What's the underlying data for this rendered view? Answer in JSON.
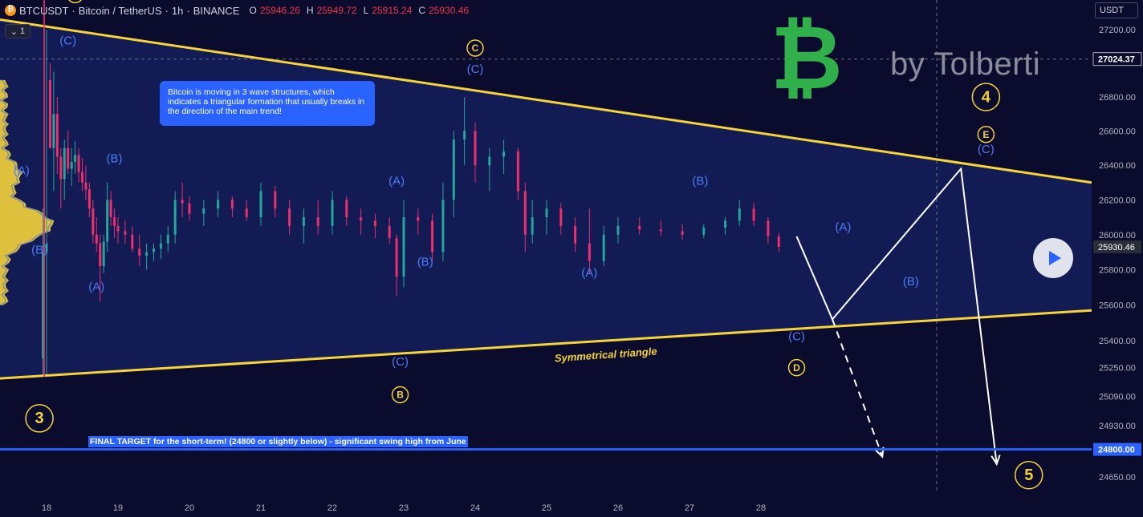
{
  "header": {
    "symbol": "BTCUSDT",
    "sep1": "·",
    "name": "Bitcoin / TetherUS",
    "sep2": "·",
    "interval": "1h",
    "sep3": "·",
    "exchange": "BINANCE",
    "open_key": "O",
    "open": "25946.26",
    "high_key": "H",
    "high": "25949.72",
    "low_key": "L",
    "low": "25915.24",
    "close_key": "C",
    "close": "25930.46"
  },
  "toolbar": {
    "collapse_chevron": "⌄",
    "collapse_count": "1",
    "currency": "USDT"
  },
  "watermark": {
    "text": "by Tolberti",
    "logo_glyph": "₿"
  },
  "colors": {
    "background": "#0b0b2e",
    "triangle_line": "#f5d33a",
    "triangle_fill": "#131c55",
    "candle_up": "#26a69a",
    "candle_down": "#ef2e6b",
    "wave_blue": "#4a7cf7",
    "wave_yellow": "#f5d33a",
    "target_line": "#2962ff",
    "logo_green": "#2fb04a"
  },
  "chart_data": {
    "type": "candlestick",
    "xlabel": "",
    "ylabel": "",
    "x_ticks": [
      "18",
      "19",
      "20",
      "21",
      "22",
      "23",
      "24",
      "25",
      "26",
      "27",
      "28"
    ],
    "y_ticks": [
      "27200.00",
      "26800.00",
      "26600.00",
      "26400.00",
      "26200.00",
      "26000.00",
      "25800.00",
      "25600.00",
      "25400.00",
      "25250.00",
      "25090.00",
      "24930.00",
      "24650.00"
    ],
    "y_scale": "log",
    "ylim": [
      24560,
      27280
    ],
    "price_labels": [
      {
        "value": 27024.37,
        "text": "27024.37",
        "style": "dark"
      },
      {
        "value": 25930.46,
        "text": "25930.46",
        "style": "grey"
      },
      {
        "value": 24800.0,
        "text": "24800.00",
        "style": "blue"
      }
    ],
    "series": [
      {
        "name": "BTCUSDT 1h",
        "ohlc_approx": [
          [
            17.95,
            25300,
            26150,
            25200,
            25900
          ],
          [
            18.0,
            25900,
            27200,
            25200,
            25950
          ],
          [
            18.05,
            26900,
            27000,
            26500,
            26500
          ],
          [
            18.1,
            26500,
            26950,
            26250,
            26700
          ],
          [
            18.15,
            26700,
            26800,
            26350,
            26450
          ],
          [
            18.2,
            26450,
            26500,
            26150,
            26320
          ],
          [
            18.25,
            26320,
            26550,
            26200,
            26500
          ],
          [
            18.3,
            26500,
            26600,
            26350,
            26380
          ],
          [
            18.35,
            26380,
            26500,
            26280,
            26420
          ],
          [
            18.4,
            26420,
            26540,
            26350,
            26460
          ],
          [
            18.45,
            26460,
            26500,
            26300,
            26360
          ],
          [
            18.5,
            26360,
            26440,
            26250,
            26300
          ],
          [
            18.55,
            26300,
            26400,
            26200,
            26260
          ],
          [
            18.6,
            26260,
            26300,
            26100,
            26150
          ],
          [
            18.65,
            26150,
            26200,
            25950,
            26000
          ],
          [
            18.7,
            26000,
            26100,
            25900,
            25950
          ],
          [
            18.75,
            25950,
            26000,
            25620,
            25820
          ],
          [
            18.8,
            25820,
            26000,
            25780,
            25960
          ],
          [
            18.85,
            25960,
            26300,
            25900,
            26200
          ],
          [
            18.9,
            26200,
            26250,
            26050,
            26100
          ],
          [
            18.95,
            26100,
            26150,
            25980,
            26050
          ],
          [
            19.0,
            26050,
            26100,
            25950,
            26020
          ],
          [
            19.1,
            26020,
            26080,
            25950,
            26000
          ],
          [
            19.2,
            26000,
            26050,
            25900,
            25920
          ],
          [
            19.3,
            25920,
            26000,
            25820,
            25880
          ],
          [
            19.4,
            25880,
            25950,
            25800,
            25900
          ],
          [
            19.5,
            25900,
            25950,
            25850,
            25920
          ],
          [
            19.6,
            25920,
            26000,
            25860,
            25950
          ],
          [
            19.7,
            25950,
            26050,
            25900,
            26000
          ],
          [
            19.8,
            26000,
            26250,
            25950,
            26200
          ],
          [
            19.9,
            26200,
            26300,
            26100,
            26180
          ],
          [
            20.0,
            26180,
            26220,
            26080,
            26120
          ],
          [
            20.2,
            26120,
            26200,
            26050,
            26150
          ],
          [
            20.4,
            26150,
            26250,
            26100,
            26200
          ],
          [
            20.6,
            26200,
            26220,
            26100,
            26150
          ],
          [
            20.8,
            26150,
            26200,
            26080,
            26100
          ],
          [
            21.0,
            26100,
            26300,
            26050,
            26250
          ],
          [
            21.2,
            26250,
            26280,
            26100,
            26150
          ],
          [
            21.4,
            26150,
            26200,
            26000,
            26050
          ],
          [
            21.6,
            26050,
            26150,
            25950,
            26100
          ],
          [
            21.8,
            26100,
            26200,
            26000,
            26050
          ],
          [
            22.0,
            26050,
            26250,
            26000,
            26200
          ],
          [
            22.2,
            26200,
            26220,
            26050,
            26100
          ],
          [
            22.4,
            26100,
            26150,
            26000,
            26080
          ],
          [
            22.6,
            26080,
            26120,
            25980,
            26050
          ],
          [
            22.8,
            26050,
            26100,
            25950,
            25980
          ],
          [
            22.9,
            25980,
            26000,
            25650,
            25760
          ],
          [
            23.0,
            25760,
            26200,
            25700,
            26100
          ],
          [
            23.2,
            26100,
            26150,
            26000,
            26080
          ],
          [
            23.4,
            26080,
            26120,
            25850,
            25900
          ],
          [
            23.55,
            25900,
            26300,
            25850,
            26200
          ],
          [
            23.7,
            26200,
            26600,
            26100,
            26550
          ],
          [
            23.85,
            26550,
            26800,
            26400,
            26600
          ],
          [
            24.0,
            26600,
            26650,
            26300,
            26400
          ],
          [
            24.2,
            26400,
            26500,
            26250,
            26450
          ],
          [
            24.4,
            26450,
            26550,
            26350,
            26480
          ],
          [
            24.6,
            26480,
            26500,
            26200,
            26250
          ],
          [
            24.7,
            26250,
            26300,
            25900,
            26000
          ],
          [
            24.8,
            26000,
            26200,
            25950,
            26100
          ],
          [
            25.0,
            26100,
            26200,
            26000,
            26150
          ],
          [
            25.2,
            26150,
            26180,
            26000,
            26050
          ],
          [
            25.4,
            26050,
            26100,
            25900,
            25950
          ],
          [
            25.6,
            25950,
            26150,
            25780,
            25850
          ],
          [
            25.8,
            25850,
            26050,
            25820,
            26000
          ],
          [
            26.0,
            26000,
            26100,
            25950,
            26050
          ],
          [
            26.3,
            26050,
            26100,
            26000,
            26030
          ],
          [
            26.6,
            26030,
            26080,
            25990,
            26020
          ],
          [
            26.9,
            26020,
            26060,
            25970,
            26000
          ],
          [
            27.2,
            26000,
            26060,
            25980,
            26040
          ],
          [
            27.5,
            26040,
            26100,
            26000,
            26080
          ],
          [
            27.7,
            26080,
            26200,
            26050,
            26150
          ],
          [
            27.9,
            26150,
            26180,
            26050,
            26080
          ],
          [
            28.1,
            26080,
            26100,
            25950,
            25990
          ],
          [
            28.25,
            25990,
            26010,
            25900,
            25930
          ]
        ]
      }
    ],
    "annotations": {
      "triangle_upper": [
        [
          17.5,
          27260
        ],
        [
          31.2,
          26300
        ]
      ],
      "triangle_lower": [
        [
          17.5,
          25190
        ],
        [
          31.2,
          25570
        ]
      ],
      "final_target_value": 24800,
      "projection_points": [
        [
          28.5,
          25990
        ],
        [
          29.0,
          25520
        ],
        [
          30.8,
          26380
        ],
        [
          31.3,
          24720
        ]
      ],
      "dashed_projection": [
        [
          29.0,
          25520
        ],
        [
          29.7,
          24760
        ]
      ],
      "triangle_label": "Symmetrical triangle",
      "bubble_text": "Bitcoin is moving in 3 wave structures, which indicates a triangular formation that usually breaks in the direction of the main trend!",
      "target_text": "FINAL TARGET for the short-term! (24800 or slightly below) - significant swing high from June",
      "wave_labels_blue": [
        {
          "t": "(C)",
          "x": 18.3,
          "y": 27130
        },
        {
          "t": "(A)",
          "x": 17.65,
          "y": 26365
        },
        {
          "t": "(B)",
          "x": 17.9,
          "y": 25910
        },
        {
          "t": "(B)",
          "x": 18.95,
          "y": 26435
        },
        {
          "t": "(A)",
          "x": 18.7,
          "y": 25700
        },
        {
          "t": "(A)",
          "x": 22.9,
          "y": 26305
        },
        {
          "t": "(B)",
          "x": 23.3,
          "y": 25840
        },
        {
          "t": "(C)",
          "x": 22.95,
          "y": 25280
        },
        {
          "t": "(C)",
          "x": 24.0,
          "y": 26960
        },
        {
          "t": "(A)",
          "x": 25.6,
          "y": 25780
        },
        {
          "t": "(B)",
          "x": 27.15,
          "y": 26305
        },
        {
          "t": "(A)",
          "x": 29.15,
          "y": 26040
        },
        {
          "t": "(B)",
          "x": 30.1,
          "y": 25730
        },
        {
          "t": "(C)",
          "x": 28.5,
          "y": 25420
        },
        {
          "t": "(C)",
          "x": 31.15,
          "y": 26490
        }
      ],
      "wave_labels_yellow": [
        {
          "t": "A",
          "x": 18.4,
          "y": 27410,
          "size": "s"
        },
        {
          "t": "C",
          "x": 24.0,
          "y": 27090,
          "size": "s"
        },
        {
          "t": "B",
          "x": 22.95,
          "y": 25100,
          "size": "s"
        },
        {
          "t": "D",
          "x": 28.5,
          "y": 25250,
          "size": "s"
        },
        {
          "t": "E",
          "x": 31.15,
          "y": 26580,
          "size": "s"
        },
        {
          "t": "3",
          "x": 17.9,
          "y": 24970,
          "size": "l"
        },
        {
          "t": "4",
          "x": 31.15,
          "y": 26800,
          "size": "l"
        },
        {
          "t": "5",
          "x": 31.75,
          "y": 24660,
          "size": "l"
        }
      ]
    }
  }
}
